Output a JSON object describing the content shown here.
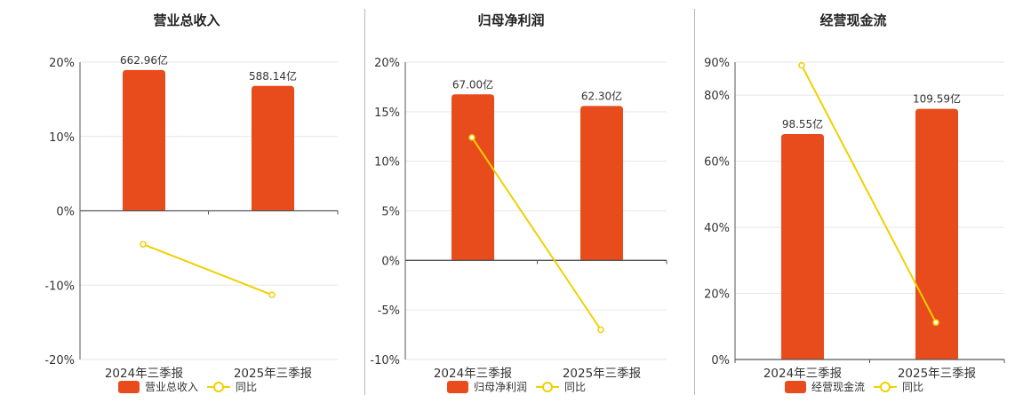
{
  "colors": {
    "bar": "#e84c1c",
    "line": "#f0d000",
    "grid": "#e6e6e6",
    "axis": "#555555"
  },
  "legend_line_label": "同比",
  "chart_data": [
    {
      "type": "bar",
      "title": "营业总收入",
      "categories": [
        "2024年三季报",
        "2025年三季报"
      ],
      "bar_series": {
        "name": "营业总收入",
        "values": [
          662.96,
          588.14
        ],
        "labels": [
          "662.96亿",
          "588.14亿"
        ]
      },
      "line_series": {
        "name": "同比",
        "values": [
          -4.5,
          -11.3
        ]
      },
      "y_ticks": [
        20,
        10,
        0,
        -10,
        -20
      ],
      "y_tick_labels": [
        "20%",
        "10%",
        "0%",
        "-10%",
        "-20%"
      ],
      "ylim": [
        -20,
        20
      ],
      "bar_max": 700,
      "legend_position": "bottom"
    },
    {
      "type": "bar",
      "title": "归母净利润",
      "categories": [
        "2024年三季报",
        "2025年三季报"
      ],
      "bar_series": {
        "name": "归母净利润",
        "values": [
          67.0,
          62.3
        ],
        "labels": [
          "67.00亿",
          "62.30亿"
        ]
      },
      "line_series": {
        "name": "同比",
        "values": [
          12.4,
          -7.0
        ]
      },
      "y_ticks": [
        20,
        15,
        10,
        5,
        0,
        -5,
        -10
      ],
      "y_tick_labels": [
        "20%",
        "15%",
        "10%",
        "5%",
        "0%",
        "-5%",
        "-10%"
      ],
      "ylim": [
        -10,
        20
      ],
      "bar_max": 80,
      "legend_position": "bottom"
    },
    {
      "type": "bar",
      "title": "经营现金流",
      "categories": [
        "2024年三季报",
        "2025年三季报"
      ],
      "bar_series": {
        "name": "经营现金流",
        "values": [
          98.55,
          109.59
        ],
        "labels": [
          "98.55亿",
          "109.59亿"
        ]
      },
      "line_series": {
        "name": "同比",
        "values": [
          89,
          11.2
        ]
      },
      "y_ticks": [
        90,
        80,
        60,
        40,
        20,
        0
      ],
      "y_tick_labels": [
        "90%",
        "80%",
        "60%",
        "40%",
        "20%",
        "0%"
      ],
      "ylim": [
        0,
        90
      ],
      "bar_max": 130,
      "legend_position": "bottom"
    }
  ]
}
